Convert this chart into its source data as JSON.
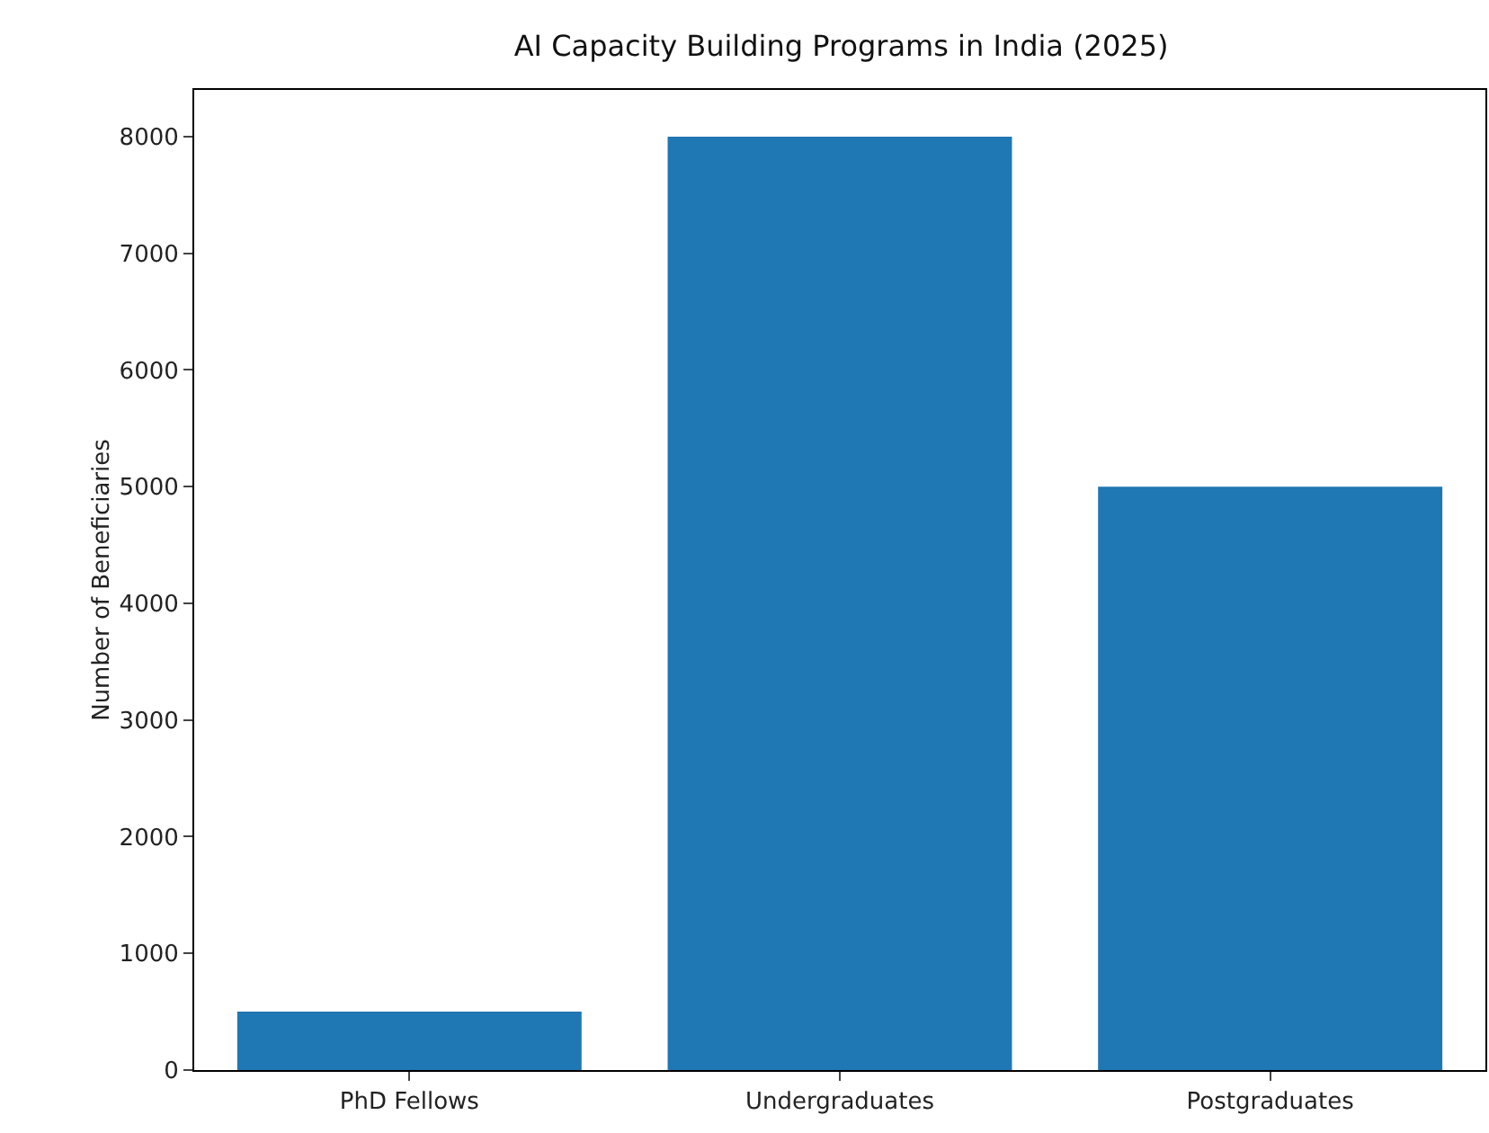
{
  "chart_data": {
    "type": "bar",
    "title": "AI Capacity Building Programs in India (2025)",
    "ylabel": "Number of Beneficiaries",
    "categories": [
      "PhD Fellows",
      "Undergraduates",
      "Postgraduates"
    ],
    "values": [
      500,
      8000,
      5000
    ],
    "color": "#1f77b4",
    "ylim": [
      0,
      8400
    ],
    "yticks": [
      0,
      1000,
      2000,
      3000,
      4000,
      5000,
      6000,
      7000,
      8000
    ],
    "grid": false
  }
}
